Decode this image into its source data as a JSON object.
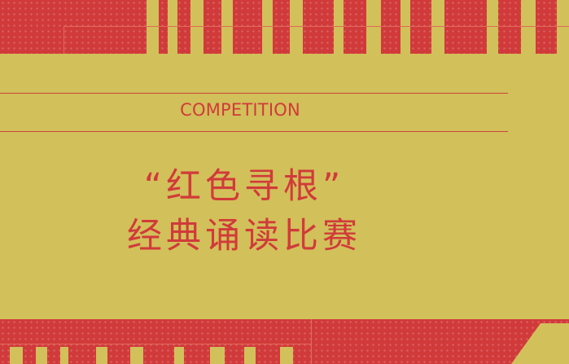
{
  "label": "COMPETITION",
  "title_line_1": "“红色寻根”",
  "title_line_2": "经典诵读比赛",
  "colors": {
    "red": "#d13a3a",
    "gold": "#d2c05a"
  }
}
